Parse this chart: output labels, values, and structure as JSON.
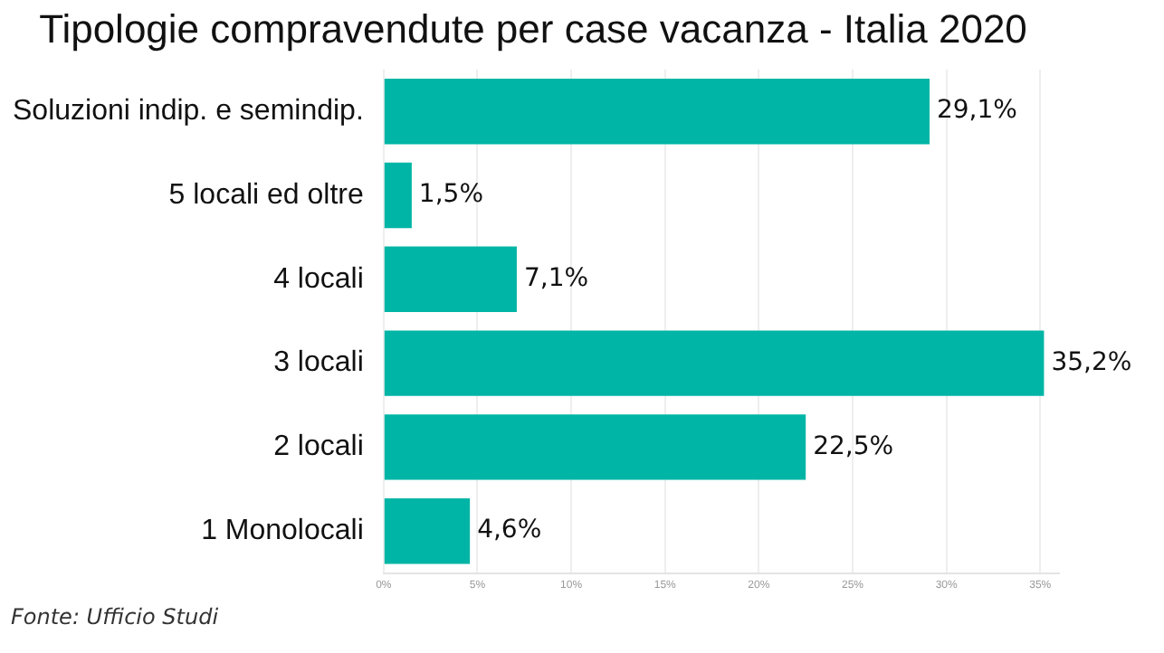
{
  "chart_data": {
    "type": "bar",
    "orientation": "horizontal",
    "title": "Tipologie compravendute per case vacanza - Italia 2020",
    "categories": [
      "Soluzioni indip. e semindip.",
      "5 locali ed oltre",
      "4 locali",
      "3 locali",
      "2 locali",
      "1 Monolocali"
    ],
    "values": [
      29.1,
      1.5,
      7.1,
      35.2,
      22.5,
      4.6
    ],
    "color": "#00b5a5",
    "value_labels": [
      "29,1%",
      "1,5%",
      "7,1%",
      "35,2%",
      "22,5%",
      "4,6%"
    ],
    "xlim": [
      0,
      36
    ],
    "xticks": [
      {
        "value": 0,
        "label": "0%"
      },
      {
        "value": 5,
        "label": "5%"
      },
      {
        "value": 10,
        "label": "10%"
      },
      {
        "value": 15,
        "label": "15%"
      },
      {
        "value": 20,
        "label": "20%"
      },
      {
        "value": 25,
        "label": "25%"
      },
      {
        "value": 30,
        "label": "30%"
      },
      {
        "value": 35,
        "label": "35%"
      }
    ],
    "grid": "x",
    "annotations": [
      "Fonte: Ufficio Studi"
    ]
  }
}
